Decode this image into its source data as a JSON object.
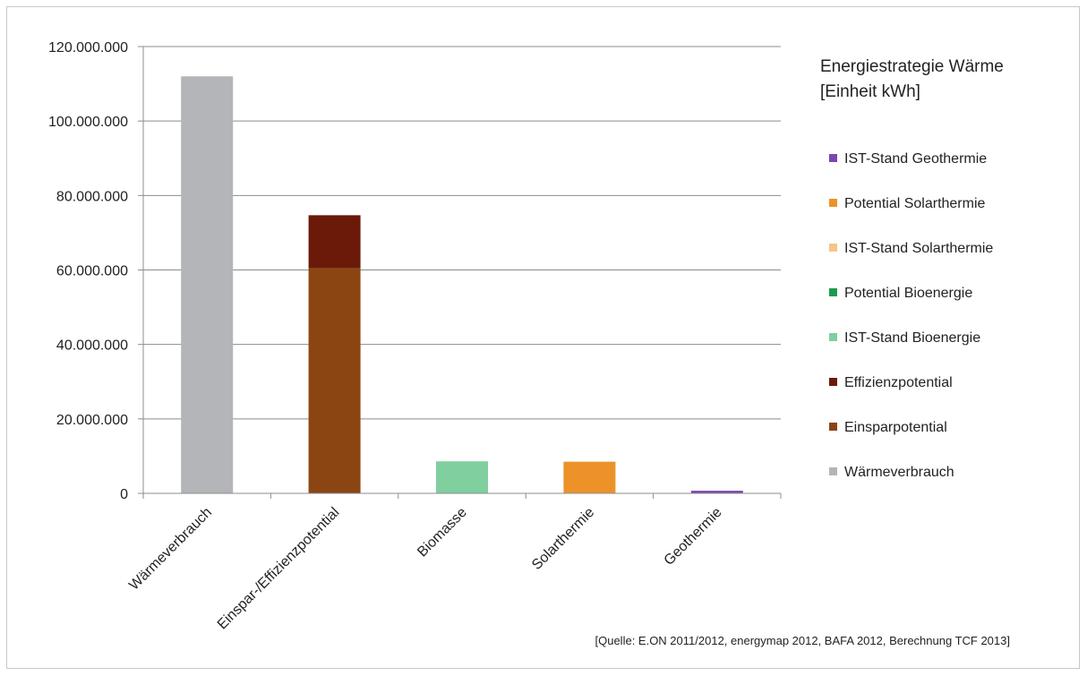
{
  "chart_data": {
    "type": "bar",
    "stacked": true,
    "title": "",
    "legend_title_lines": [
      "Energiestrategie Wärme",
      "[Einheit kWh]"
    ],
    "categories": [
      "Wärmeverbrauch",
      "Einspar-/Effizienzpotential",
      "Biomasse",
      "Solarthermie",
      "Geothermie"
    ],
    "ylim": [
      0,
      120000000
    ],
    "y_ticks": [
      {
        "value": 0,
        "label": "0"
      },
      {
        "value": 20000000,
        "label": "20.000.000"
      },
      {
        "value": 40000000,
        "label": "40.000.000"
      },
      {
        "value": 60000000,
        "label": "60.000.000"
      },
      {
        "value": 80000000,
        "label": "80.000.000"
      },
      {
        "value": 100000000,
        "label": "100.000.000"
      },
      {
        "value": 120000000,
        "label": "120.000.000"
      }
    ],
    "grid": true,
    "legend_position": "right",
    "series": [
      {
        "name": "Wärmeverbrauch",
        "color": "#b3b5b8",
        "values": [
          112000000,
          0,
          0,
          0,
          0
        ]
      },
      {
        "name": "Einsparpotential",
        "color": "#8b4513",
        "values": [
          0,
          60500000,
          0,
          0,
          0
        ]
      },
      {
        "name": "Effizienzpotential",
        "color": "#6b1a0a",
        "values": [
          0,
          14200000,
          0,
          0,
          0
        ]
      },
      {
        "name": "IST-Stand Bioenergie",
        "color": "#7fcf9f",
        "values": [
          0,
          0,
          8600000,
          0,
          0
        ]
      },
      {
        "name": "Potential Bioenergie",
        "color": "#1e9a4c",
        "values": [
          0,
          0,
          0,
          0,
          0
        ]
      },
      {
        "name": "IST-Stand Solarthermie",
        "color": "#f5c58a",
        "values": [
          0,
          0,
          0,
          0,
          0
        ]
      },
      {
        "name": "Potential Solarthermie",
        "color": "#ec9229",
        "values": [
          0,
          0,
          0,
          8500000,
          0
        ]
      },
      {
        "name": "IST-Stand Geothermie",
        "color": "#7a47b0",
        "values": [
          0,
          0,
          0,
          0,
          700000
        ]
      }
    ],
    "legend_order": [
      "IST-Stand Geothermie",
      "Potential Solarthermie",
      "IST-Stand Solarthermie",
      "Potential Bioenergie",
      "IST-Stand Bioenergie",
      "Effizienzpotential",
      "Einsparpotential",
      "Wärmeverbrauch"
    ]
  },
  "source_note": "[Quelle: E.ON 2011/2012, energymap 2012,  BAFA 2012, Berechnung TCF 2013]"
}
